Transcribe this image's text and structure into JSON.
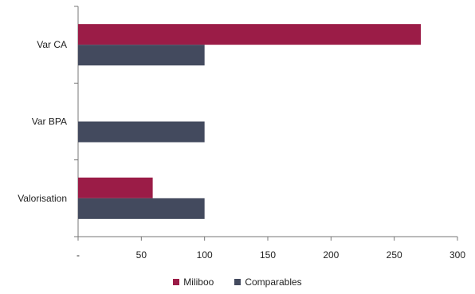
{
  "chart_data": {
    "type": "bar",
    "orientation": "horizontal",
    "categories": [
      "Var CA",
      "Var BPA",
      "Valorisation"
    ],
    "series": [
      {
        "name": "Miliboo",
        "values": [
          271,
          null,
          59
        ],
        "color": "#9B1C47"
      },
      {
        "name": "Comparables",
        "values": [
          100,
          100,
          100
        ],
        "color": "#434A5E"
      }
    ],
    "x_ticks": [
      "-",
      "50",
      "100",
      "150",
      "200",
      "250",
      "300"
    ],
    "xlim": [
      0,
      300
    ],
    "grid": false,
    "legend_position": "bottom"
  }
}
